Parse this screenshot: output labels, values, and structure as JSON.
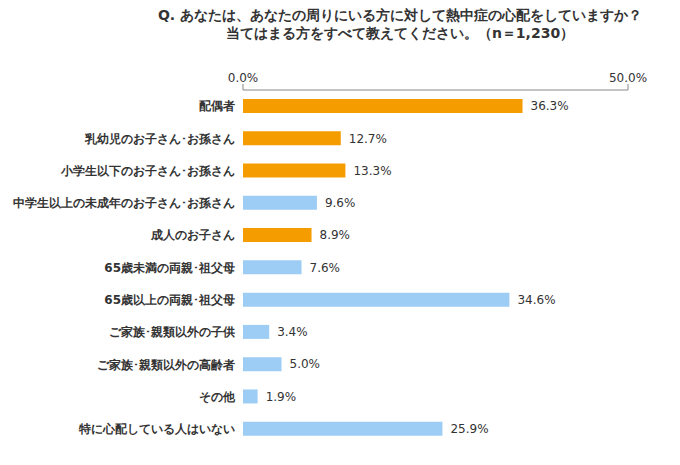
{
  "chart_data": {
    "type": "bar",
    "title": "Q. あなたは、あなたの周りにいる方に対して熱中症の心配をしていますか？\n当てはまる方をすべて教えてください。（n＝1,230）",
    "orientation": "horizontal",
    "categories": [
      "配偶者",
      "乳幼児のお子さん･お孫さん",
      "小学生以下のお子さん･お孫さん",
      "中学生以上の未成年のお子さん･お孫さん",
      "成人のお子さん",
      "65歳未満の両親･祖父母",
      "65歳以上の両親･祖父母",
      "ご家族･親類以外の子供",
      "ご家族･親類以外の高齢者",
      "その他",
      "特に心配している人はいない"
    ],
    "values": [
      36.3,
      12.7,
      13.3,
      9.6,
      8.9,
      7.6,
      34.6,
      3.4,
      5.0,
      1.9,
      25.9
    ],
    "value_labels": [
      "36.3%",
      "12.7%",
      "13.3%",
      "9.6%",
      "8.9%",
      "7.6%",
      "34.6%",
      "3.4%",
      "5.0%",
      "1.9%",
      "25.9%"
    ],
    "colors": [
      "#f59c00",
      "#f59c00",
      "#f59c00",
      "#9dcdf5",
      "#f59c00",
      "#9dcdf5",
      "#9dcdf5",
      "#9dcdf5",
      "#9dcdf5",
      "#9dcdf5",
      "#9dcdf5"
    ],
    "xlim": [
      0,
      50
    ],
    "xticks": [
      {
        "value": 0,
        "label": "0.0%"
      },
      {
        "value": 50,
        "label": "50.0%"
      }
    ],
    "data_labels": true,
    "grid": false
  }
}
